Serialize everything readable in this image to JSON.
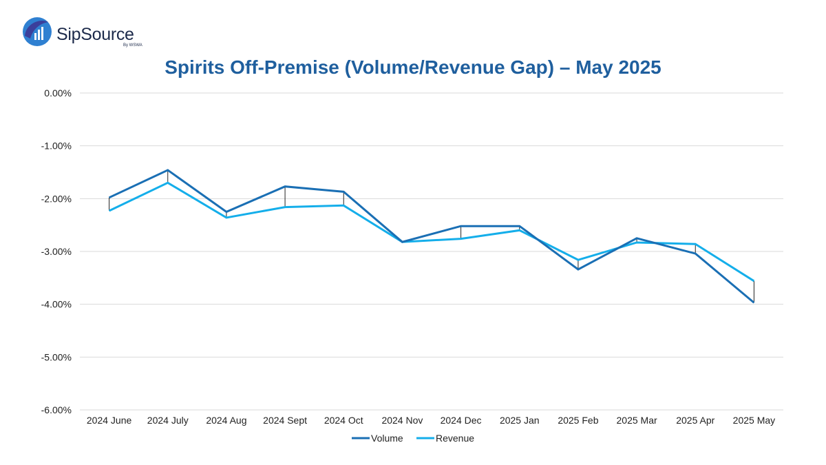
{
  "brand": {
    "name": "SipSource",
    "tagline": "By WSWA"
  },
  "colors": {
    "volume": "#1a6fb4",
    "revenue": "#14aeea",
    "gap": "#222222",
    "title": "#1f5f9e",
    "grid": "#d9d9d9"
  },
  "chart_data": {
    "type": "line",
    "title": "Spirits Off-Premise (Volume/Revenue Gap) – May 2025",
    "xlabel": "",
    "ylabel": "",
    "categories": [
      "2024 June",
      "2024 July",
      "2024 Aug",
      "2024 Sept",
      "2024 Oct",
      "2024 Nov",
      "2024 Dec",
      "2025 Jan",
      "2025 Feb",
      "2025 Mar",
      "2025 Apr",
      "2025 May"
    ],
    "series": [
      {
        "name": "Volume",
        "values": [
          -1.98,
          -1.46,
          -2.25,
          -1.77,
          -1.87,
          -2.82,
          -2.52,
          -2.52,
          -3.34,
          -2.75,
          -3.04,
          -3.97
        ]
      },
      {
        "name": "Revenue",
        "values": [
          -2.23,
          -1.7,
          -2.36,
          -2.16,
          -2.13,
          -2.82,
          -2.76,
          -2.6,
          -3.16,
          -2.83,
          -2.86,
          -3.56
        ]
      }
    ],
    "ylim": [
      -6,
      0
    ],
    "yticks": [
      "0.00%",
      "-1.00%",
      "-2.00%",
      "-3.00%",
      "-4.00%",
      "-5.00%",
      "-6.00%"
    ],
    "ytick_values": [
      0,
      -1,
      -2,
      -3,
      -4,
      -5,
      -6
    ],
    "grid": true,
    "legend_position": "bottom-center"
  }
}
